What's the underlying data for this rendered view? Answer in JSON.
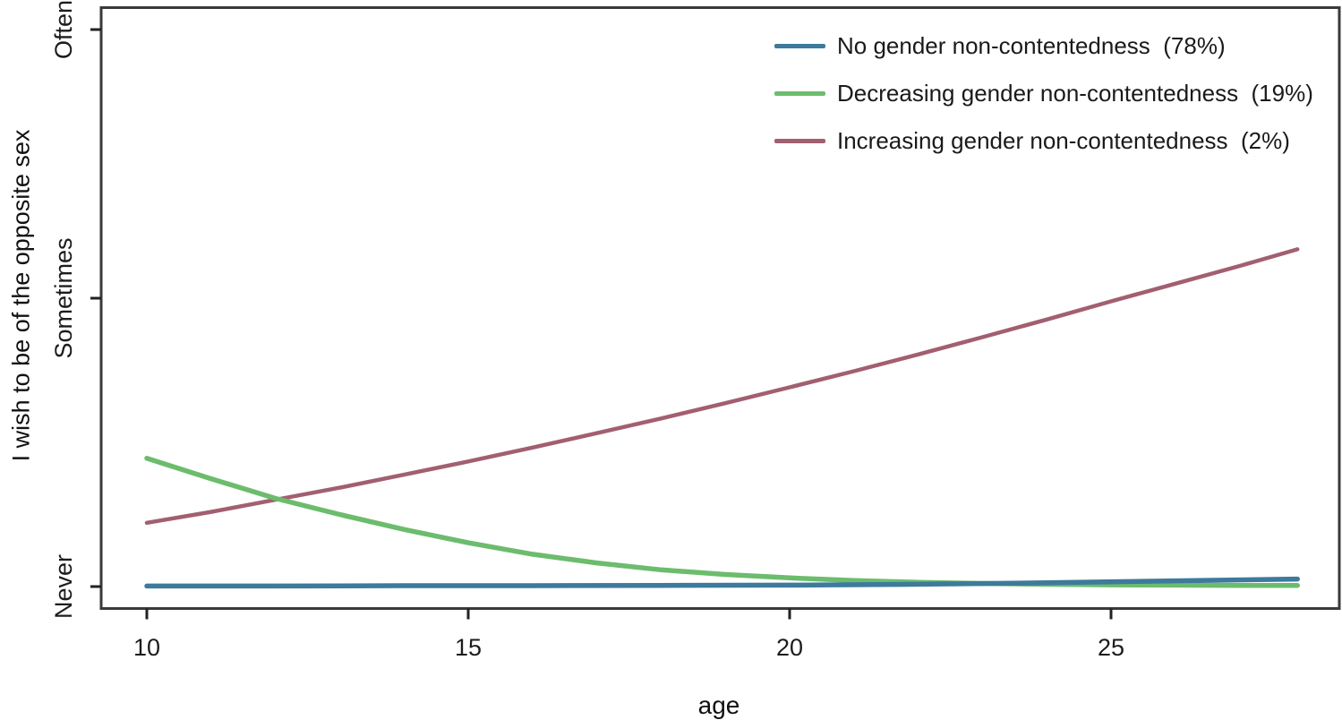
{
  "figure": {
    "background": "#ffffff",
    "text_color": "#1a1a1a",
    "axis_color": "#3a3a3a"
  },
  "chart_data": {
    "type": "line",
    "title": "",
    "xlabel": "age",
    "ylabel": "I wish to be of the opposite sex",
    "x_ticks": [
      10,
      15,
      20,
      25
    ],
    "y_ticks": [
      {
        "label": "Never",
        "value": 1
      },
      {
        "label": "Sometimes",
        "value": 2
      },
      {
        "label": "Often",
        "value": 3
      }
    ],
    "x_range": [
      9.3,
      28.6
    ],
    "y_range_labels": [
      "Never",
      "Often"
    ],
    "grid": false,
    "legend_position": "top-right",
    "series": [
      {
        "name": "Increasing gender non-contentedness  (2%)",
        "color": "#a25f70",
        "line_width": 4.5,
        "points": [
          [
            10,
            1.221
          ],
          [
            11,
            1.259
          ],
          [
            12,
            1.301
          ],
          [
            13,
            1.343
          ],
          [
            14,
            1.388
          ],
          [
            15,
            1.434
          ],
          [
            16,
            1.482
          ],
          [
            17,
            1.532
          ],
          [
            18,
            1.583
          ],
          [
            19,
            1.636
          ],
          [
            20,
            1.691
          ],
          [
            21,
            1.747
          ],
          [
            22,
            1.805
          ],
          [
            23,
            1.865
          ],
          [
            24,
            1.926
          ],
          [
            25,
            1.989
          ],
          [
            26,
            2.054
          ],
          [
            27,
            2.12
          ],
          [
            27.9,
            2.182
          ]
        ]
      },
      {
        "name": "Decreasing gender non-contentedness  (19%)",
        "color": "#6cbc6d",
        "line_width": 5.5,
        "points": [
          [
            10,
            1.445
          ],
          [
            11,
            1.374
          ],
          [
            12,
            1.306
          ],
          [
            13,
            1.25
          ],
          [
            14,
            1.198
          ],
          [
            15,
            1.152
          ],
          [
            16,
            1.112
          ],
          [
            17,
            1.082
          ],
          [
            18,
            1.058
          ],
          [
            19,
            1.042
          ],
          [
            20,
            1.03
          ],
          [
            21,
            1.021
          ],
          [
            22,
            1.015
          ],
          [
            23,
            1.011
          ],
          [
            24,
            1.008
          ],
          [
            25,
            1.006
          ],
          [
            26,
            1.005
          ],
          [
            27,
            1.004
          ],
          [
            27.9,
            1.004
          ]
        ]
      },
      {
        "name": "No gender non-contentedness  (78%)",
        "color": "#3d7a9c",
        "line_width": 5.5,
        "points": [
          [
            10,
            1.002
          ],
          [
            12,
            1.002
          ],
          [
            14,
            1.003
          ],
          [
            16,
            1.003
          ],
          [
            18,
            1.004
          ],
          [
            20,
            1.005
          ],
          [
            22,
            1.008
          ],
          [
            24,
            1.013
          ],
          [
            26,
            1.02
          ],
          [
            27.9,
            1.026
          ]
        ]
      }
    ],
    "legend_order": [
      2,
      1,
      0
    ]
  }
}
